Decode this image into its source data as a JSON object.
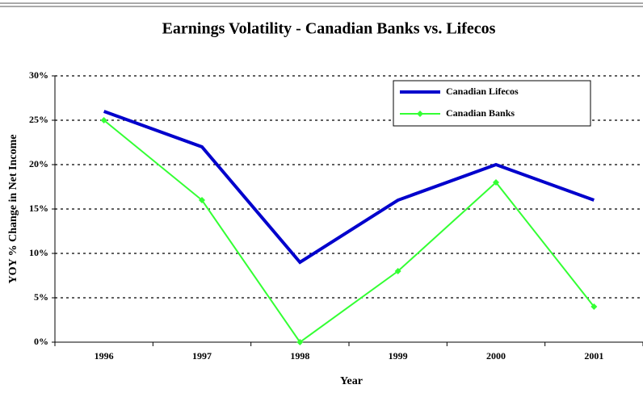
{
  "chart_data": {
    "type": "line",
    "title": "Earnings Volatility - Canadian Banks vs. Lifecos",
    "x_label": "Year",
    "y_label": "YOY % Change in Net Income",
    "categories": [
      "1996",
      "1997",
      "1998",
      "1999",
      "2000",
      "2001"
    ],
    "series": [
      {
        "name": "Canadian Lifecos",
        "color": "#0000cc",
        "values": [
          26,
          22,
          9,
          16,
          20,
          16
        ]
      },
      {
        "name": "Canadian Banks",
        "color": "#33ff33",
        "values": [
          25,
          16,
          0,
          8,
          18,
          4
        ]
      }
    ],
    "ylim": [
      0,
      30
    ],
    "yticks": [
      {
        "value": 0,
        "label": "0%"
      },
      {
        "value": 5,
        "label": "5%"
      },
      {
        "value": 10,
        "label": "10%"
      },
      {
        "value": 15,
        "label": "15%"
      },
      {
        "value": 20,
        "label": "20%"
      },
      {
        "value": 25,
        "label": "25%"
      },
      {
        "value": 30,
        "label": "30%"
      }
    ],
    "grid": true
  }
}
